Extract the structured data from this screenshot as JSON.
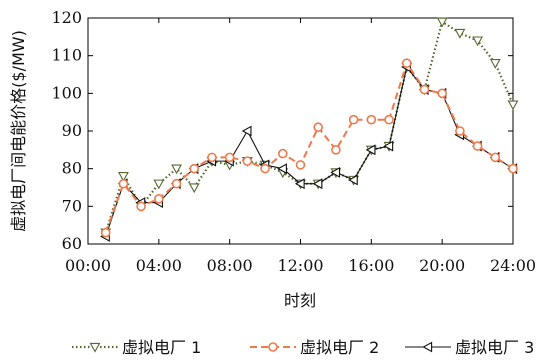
{
  "chart_data": {
    "type": "line",
    "xlabel": "时刻",
    "ylabel": "虚拟电厂间电能价格($/MW)",
    "xlim": [
      0,
      24
    ],
    "ylim": [
      60,
      120
    ],
    "x_ticks": [
      0,
      4,
      8,
      12,
      16,
      20,
      24
    ],
    "x_tick_labels": [
      "00:00",
      "04:00",
      "08:00",
      "12:00",
      "16:00",
      "20:00",
      "24:00"
    ],
    "y_ticks": [
      60,
      70,
      80,
      90,
      100,
      110,
      120
    ],
    "y_tick_labels": [
      "60",
      "70",
      "80",
      "90",
      "100",
      "110",
      "120"
    ],
    "grid": false,
    "legend_position": "bottom",
    "x": [
      1,
      2,
      3,
      4,
      5,
      6,
      7,
      8,
      9,
      10,
      11,
      12,
      13,
      14,
      15,
      16,
      17,
      18,
      19,
      20,
      21,
      22,
      23,
      24
    ],
    "series": [
      {
        "name": "虚拟电厂 1",
        "color": "#556b2f",
        "style": "dotted",
        "marker": "triangle-down",
        "values": [
          63,
          78,
          70,
          76,
          80,
          75,
          82,
          81,
          82,
          81,
          79,
          76,
          76,
          79,
          77,
          85,
          86,
          107,
          101,
          119,
          116,
          114,
          108,
          97
        ]
      },
      {
        "name": "虚拟电厂 2",
        "color": "#ee7a4c",
        "style": "dashed",
        "marker": "circle",
        "values": [
          63,
          76,
          70,
          72,
          76,
          80,
          83,
          83,
          82,
          80,
          84,
          81,
          91,
          85,
          93,
          93,
          93,
          108,
          101,
          100,
          90,
          86,
          83,
          80
        ]
      },
      {
        "name": "虚拟电厂 3",
        "color": "#111111",
        "style": "solid",
        "marker": "triangle-left",
        "values": [
          62,
          76,
          71,
          71,
          76,
          80,
          82,
          82,
          90,
          81,
          80,
          76,
          76,
          79,
          77,
          85,
          86,
          107,
          101,
          100,
          89,
          86,
          83,
          80
        ]
      }
    ]
  }
}
